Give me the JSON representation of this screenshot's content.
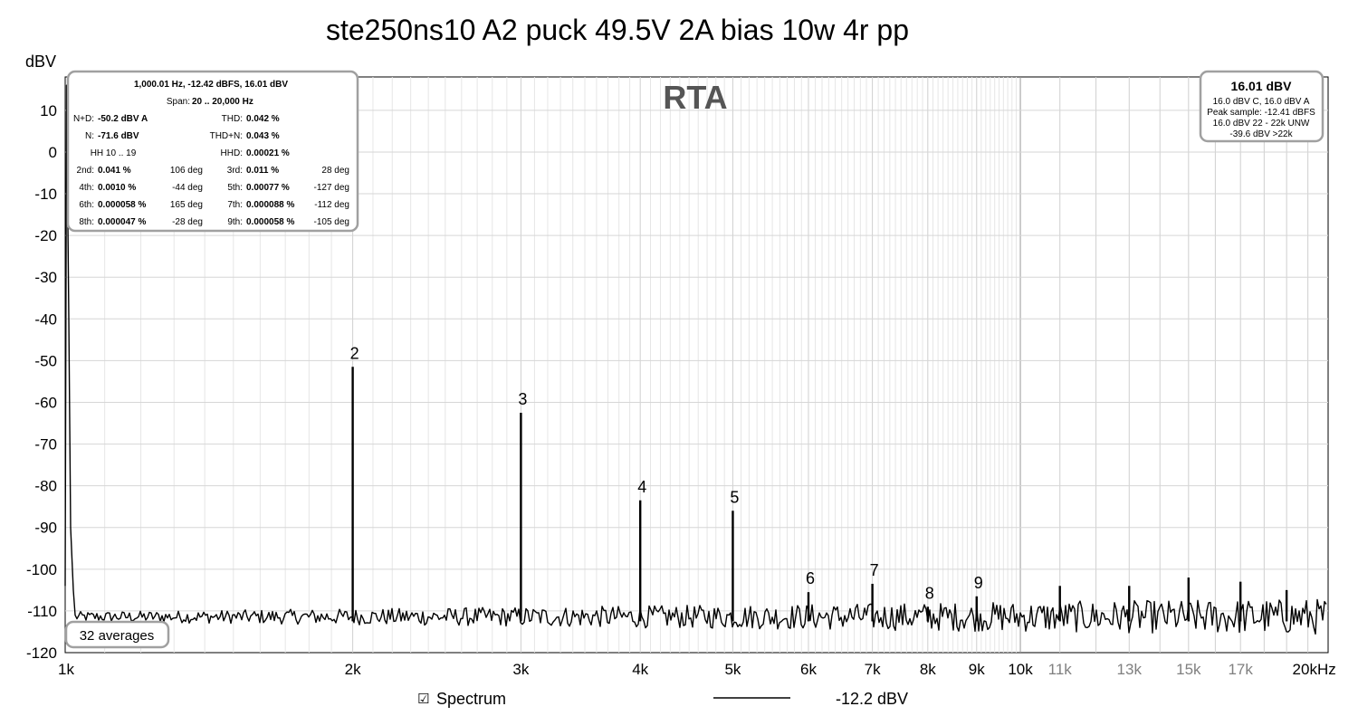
{
  "chart_data": {
    "type": "line",
    "title": "ste250ns10 A2 puck 49.5V 2A bias 10w 4r pp",
    "ylabel": "dBV",
    "xlabel": "",
    "x_scale": "log",
    "xlim": [
      1000,
      21000
    ],
    "ylim": [
      -120,
      18
    ],
    "yticks": [
      10,
      0,
      -10,
      -20,
      -30,
      -40,
      -50,
      -60,
      -70,
      -80,
      -90,
      -100,
      -110,
      -120
    ],
    "ytick_labels": [
      "10",
      "0",
      "-10",
      "-20",
      "-30",
      "-40",
      "-50",
      "-60",
      "-70",
      "-80",
      "-90",
      "-100",
      "-110",
      "-120"
    ],
    "xticks_major": [
      {
        "value": 1000,
        "label": "1k"
      },
      {
        "value": 2000,
        "label": "2k"
      },
      {
        "value": 3000,
        "label": "3k"
      },
      {
        "value": 4000,
        "label": "4k"
      },
      {
        "value": 5000,
        "label": "5k"
      },
      {
        "value": 6000,
        "label": "6k"
      },
      {
        "value": 7000,
        "label": "7k"
      },
      {
        "value": 8000,
        "label": "8k"
      },
      {
        "value": 9000,
        "label": "9k"
      },
      {
        "value": 10000,
        "label": "10k"
      },
      {
        "value": 20000,
        "label": "20kHz"
      }
    ],
    "xticks_minor": [
      {
        "value": 11000,
        "label": "11k"
      },
      {
        "value": 13000,
        "label": "13k"
      },
      {
        "value": 15000,
        "label": "15k"
      },
      {
        "value": 17000,
        "label": "17k"
      }
    ],
    "grid": true,
    "watermark": "RTA",
    "noise_floor_dbv": -111,
    "series": [
      {
        "name": "Spectrum",
        "peaks": [
          {
            "freq": 1000,
            "dbv": 16.01
          },
          {
            "freq": 2000,
            "dbv": -51.5
          },
          {
            "freq": 3000,
            "dbv": -62.5
          },
          {
            "freq": 4000,
            "dbv": -83.5
          },
          {
            "freq": 5000,
            "dbv": -86
          },
          {
            "freq": 6000,
            "dbv": -105.5
          },
          {
            "freq": 7000,
            "dbv": -103.5
          },
          {
            "freq": 8000,
            "dbv": -109
          },
          {
            "freq": 9000,
            "dbv": -106.5
          },
          {
            "freq": 11000,
            "dbv": -104
          },
          {
            "freq": 13000,
            "dbv": -104
          },
          {
            "freq": 15000,
            "dbv": -102
          },
          {
            "freq": 17000,
            "dbv": -103
          },
          {
            "freq": 19000,
            "dbv": -105
          }
        ]
      }
    ],
    "harmonic_labels": [
      {
        "label": "2",
        "freq": 2000,
        "dbv": -51.5
      },
      {
        "label": "3",
        "freq": 3000,
        "dbv": -62.5
      },
      {
        "label": "4",
        "freq": 4000,
        "dbv": -83.5
      },
      {
        "label": "5",
        "freq": 5000,
        "dbv": -86
      },
      {
        "label": "6",
        "freq": 6000,
        "dbv": -105.5
      },
      {
        "label": "7",
        "freq": 7000,
        "dbv": -103.5
      },
      {
        "label": "8",
        "freq": 8000,
        "dbv": -109
      },
      {
        "label": "9",
        "freq": 9000,
        "dbv": -106.5
      }
    ]
  },
  "info_box": {
    "line1": "1,000.01 Hz, -12.42 dBFS, 16.01 dBV",
    "span_label": "Span:",
    "span_value": "20 .. 20,000 Hz",
    "rows": [
      {
        "l_label": "N+D:",
        "l_value": "-50.2 dBV A",
        "r_label": "THD:",
        "r_value": "0.042 %"
      },
      {
        "l_label": "N:",
        "l_value": "-71.6 dBV",
        "r_label": "THD+N:",
        "r_value": "0.043 %"
      },
      {
        "l_label": "HH 10 .. 19",
        "l_value": "",
        "r_label": "HHD:",
        "r_value": "0.00021 %"
      }
    ],
    "harmonics": [
      {
        "a_label": "2nd:",
        "a_value": "0.041 %",
        "a_deg": "106 deg",
        "b_label": "3rd:",
        "b_value": "0.011 %",
        "b_deg": "28 deg"
      },
      {
        "a_label": "4th:",
        "a_value": "0.0010 %",
        "a_deg": "-44 deg",
        "b_label": "5th:",
        "b_value": "0.00077 %",
        "b_deg": "-127 deg"
      },
      {
        "a_label": "6th:",
        "a_value": "0.000058 %",
        "a_deg": "165 deg",
        "b_label": "7th:",
        "b_value": "0.000088 %",
        "b_deg": "-112 deg"
      },
      {
        "a_label": "8th:",
        "a_value": "0.000047 %",
        "a_deg": "-28 deg",
        "b_label": "9th:",
        "b_value": "0.000058 %",
        "b_deg": "-105 deg"
      }
    ]
  },
  "level_box": {
    "main": "16.01 dBV",
    "lines": [
      "16.0 dBV C, 16.0 dBV A",
      "Peak sample: -12.41 dBFS",
      "16.0 dBV 22 - 22k UNW",
      "-39.6 dBV >22k"
    ]
  },
  "averages_box": {
    "text": "32 averages"
  },
  "legend": {
    "checkbox_glyph": "☑",
    "checked": true,
    "series_label": "Spectrum",
    "value": "-12.2 dBV"
  }
}
